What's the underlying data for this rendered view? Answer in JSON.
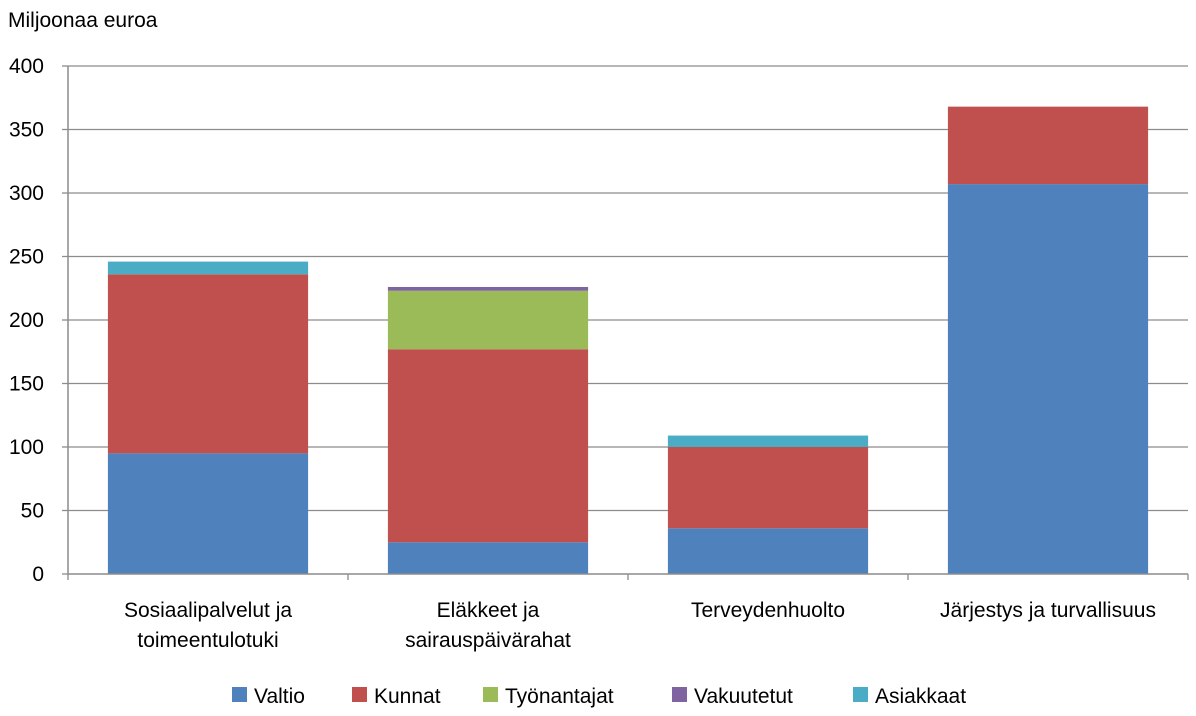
{
  "chart_data": {
    "type": "bar",
    "stacked": true,
    "ylabel": "Miljoonaa euroa",
    "ylim": [
      0,
      400
    ],
    "yticks": [
      0,
      50,
      100,
      150,
      200,
      250,
      300,
      350,
      400
    ],
    "grid": true,
    "legend_position": "bottom",
    "categories": [
      [
        "Sosiaalipalvelut ja",
        "toimeentulotuki"
      ],
      [
        "Eläkkeet ja",
        "sairauspäivärahat"
      ],
      [
        "Terveydenhuolto"
      ],
      [
        "Järjestys ja turvallisuus"
      ]
    ],
    "series": [
      {
        "name": "Valtio",
        "color": "#4F81BD",
        "values": [
          95,
          25,
          36,
          307
        ]
      },
      {
        "name": "Kunnat",
        "color": "#C0504D",
        "values": [
          141,
          152,
          64,
          61
        ]
      },
      {
        "name": "Työnantajat",
        "color": "#9BBB59",
        "values": [
          0,
          46,
          0,
          0
        ]
      },
      {
        "name": "Vakuutetut",
        "color": "#8064A2",
        "values": [
          0,
          3,
          0,
          0
        ]
      },
      {
        "name": "Asiakkaat",
        "color": "#4BACC6",
        "values": [
          10,
          0,
          9,
          0
        ]
      }
    ]
  }
}
